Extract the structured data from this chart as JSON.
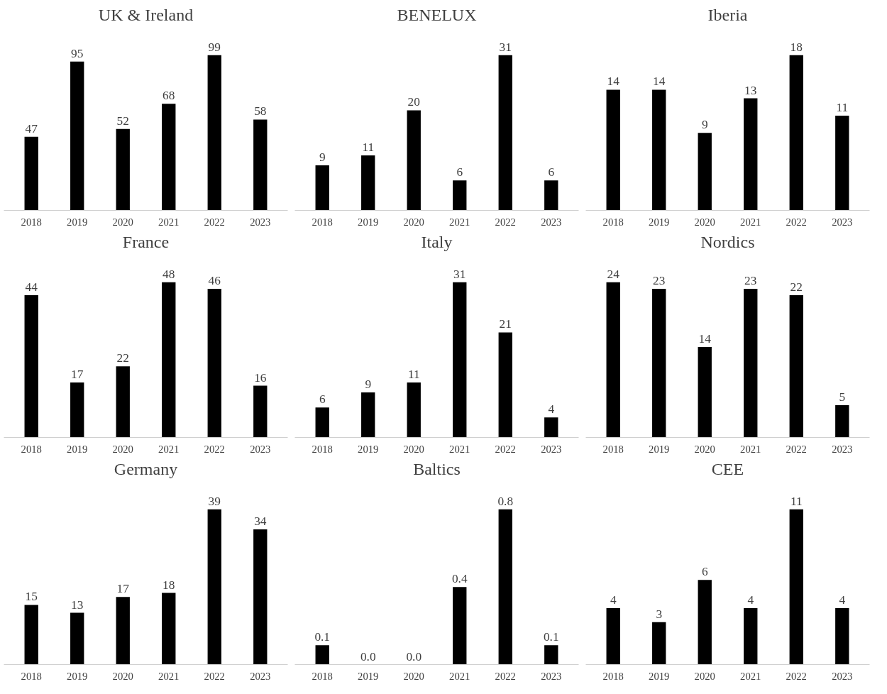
{
  "chart_data": [
    {
      "type": "bar",
      "title": "UK & Ireland",
      "categories": [
        "2018",
        "2019",
        "2020",
        "2021",
        "2022",
        "2023"
      ],
      "values": [
        47,
        95,
        52,
        68,
        99,
        58
      ],
      "color": "#000000",
      "data_labels": true,
      "grid": false
    },
    {
      "type": "bar",
      "title": "BENELUX",
      "categories": [
        "2018",
        "2019",
        "2020",
        "2021",
        "2022",
        "2023"
      ],
      "values": [
        9,
        11,
        20,
        6,
        31,
        6
      ],
      "color": "#000000",
      "data_labels": true,
      "grid": false
    },
    {
      "type": "bar",
      "title": "Iberia",
      "categories": [
        "2018",
        "2019",
        "2020",
        "2021",
        "2022",
        "2023"
      ],
      "values": [
        14,
        14,
        9,
        13,
        18,
        11
      ],
      "color": "#000000",
      "data_labels": true,
      "grid": false
    },
    {
      "type": "bar",
      "title": "France",
      "categories": [
        "2018",
        "2019",
        "2020",
        "2021",
        "2022",
        "2023"
      ],
      "values": [
        44,
        17,
        22,
        48,
        46,
        16
      ],
      "color": "#000000",
      "data_labels": true,
      "grid": false
    },
    {
      "type": "bar",
      "title": "Italy",
      "categories": [
        "2018",
        "2019",
        "2020",
        "2021",
        "2022",
        "2023"
      ],
      "values": [
        6,
        9,
        11,
        31,
        21,
        4
      ],
      "color": "#000000",
      "data_labels": true,
      "grid": false
    },
    {
      "type": "bar",
      "title": "Nordics",
      "categories": [
        "2018",
        "2019",
        "2020",
        "2021",
        "2022",
        "2023"
      ],
      "values": [
        24,
        23,
        14,
        23,
        22,
        5
      ],
      "color": "#000000",
      "data_labels": true,
      "grid": false
    },
    {
      "type": "bar",
      "title": "Germany",
      "categories": [
        "2018",
        "2019",
        "2020",
        "2021",
        "2022",
        "2023"
      ],
      "values": [
        15,
        13,
        17,
        18,
        39,
        34
      ],
      "color": "#000000",
      "data_labels": true,
      "grid": false
    },
    {
      "type": "bar",
      "title": "Baltics",
      "categories": [
        "2018",
        "2019",
        "2020",
        "2021",
        "2022",
        "2023"
      ],
      "values": [
        0.1,
        0.0,
        0.0,
        0.4,
        0.8,
        0.1
      ],
      "value_labels": [
        "0.1",
        "0.0",
        "0.0",
        "0.4",
        "0.8",
        "0.1"
      ],
      "color": "#000000",
      "grid": false
    },
    {
      "type": "bar",
      "title": "CEE",
      "categories": [
        "2018",
        "2019",
        "2020",
        "2021",
        "2022",
        "2023"
      ],
      "values": [
        4,
        3,
        6,
        4,
        11,
        4
      ],
      "color": "#000000",
      "data_labels": true,
      "grid": false
    }
  ]
}
